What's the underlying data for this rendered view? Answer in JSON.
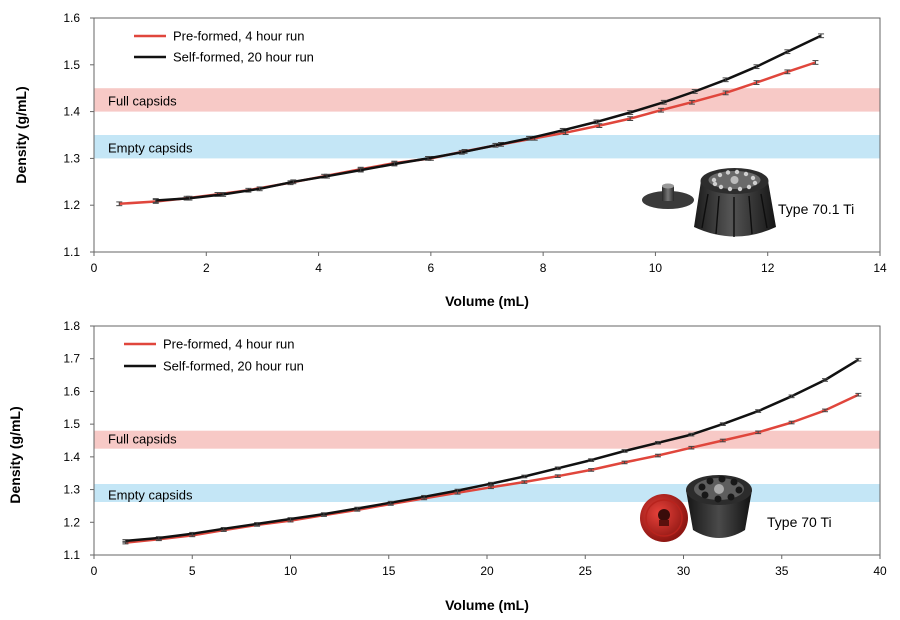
{
  "chart_data": [
    {
      "type": "line",
      "xlabel": "Volume (mL)",
      "ylabel": "Density (g/mL)",
      "xlim": [
        0,
        14
      ],
      "ylim": [
        1.1,
        1.6
      ],
      "xticks": [
        0,
        2,
        4,
        6,
        8,
        10,
        12,
        14
      ],
      "yticks": [
        1.1,
        1.2,
        1.3,
        1.4,
        1.5,
        1.6
      ],
      "x_tick_labels": [
        "0",
        "2",
        "4",
        "6",
        "8",
        "10",
        "12",
        "14"
      ],
      "y_tick_labels": [
        "1.1",
        "1.2",
        "1.3",
        "1.4",
        "1.5",
        "1.6"
      ],
      "grid": false,
      "legend": "top-left",
      "rotor_label": "Type 70.1 Ti",
      "bands": [
        {
          "label": "Full capsids",
          "y0": 1.4,
          "y1": 1.45,
          "color": "#f7c9c6"
        },
        {
          "label": "Empty capsids",
          "y0": 1.3,
          "y1": 1.35,
          "color": "#c4e6f6"
        }
      ],
      "series": [
        {
          "name": "Pre-formed, 4 hour run",
          "color": "#e0463c",
          "x": [
            0.45,
            1.1,
            1.65,
            2.2,
            2.75,
            3.5,
            4.1,
            4.75,
            5.35,
            6.0,
            6.6,
            7.25,
            7.85,
            8.4,
            9.0,
            9.55,
            10.1,
            10.65,
            11.25,
            11.8,
            12.35,
            12.85
          ],
          "y": [
            1.203,
            1.208,
            1.215,
            1.223,
            1.232,
            1.248,
            1.262,
            1.277,
            1.29,
            1.3,
            1.315,
            1.33,
            1.343,
            1.355,
            1.37,
            1.385,
            1.403,
            1.42,
            1.44,
            1.462,
            1.485,
            1.505
          ]
        },
        {
          "name": "Self-formed, 20 hour run",
          "color": "#111111",
          "x": [
            1.1,
            1.7,
            2.3,
            2.95,
            3.55,
            4.15,
            4.75,
            5.35,
            5.95,
            6.55,
            7.15,
            7.75,
            8.35,
            8.95,
            9.55,
            10.15,
            10.7,
            11.25,
            11.8,
            12.35,
            12.95
          ],
          "y": [
            1.21,
            1.215,
            1.223,
            1.235,
            1.25,
            1.262,
            1.275,
            1.288,
            1.3,
            1.313,
            1.328,
            1.343,
            1.36,
            1.378,
            1.398,
            1.42,
            1.443,
            1.468,
            1.496,
            1.528,
            1.562
          ]
        }
      ]
    },
    {
      "type": "line",
      "xlabel": "Volume (mL)",
      "ylabel": "Density (g/mL)",
      "xlim": [
        0,
        40
      ],
      "ylim": [
        1.1,
        1.8
      ],
      "xticks": [
        0,
        5,
        10,
        15,
        20,
        25,
        30,
        35,
        40
      ],
      "yticks": [
        1.1,
        1.2,
        1.3,
        1.4,
        1.5,
        1.6,
        1.7,
        1.8
      ],
      "x_tick_labels": [
        "0",
        "5",
        "10",
        "15",
        "20",
        "25",
        "30",
        "35",
        "40"
      ],
      "y_tick_labels": [
        "1.1",
        "1.2",
        "1.3",
        "1.4",
        "1.5",
        "1.6",
        "1.7",
        "1.8"
      ],
      "grid": false,
      "legend": "top-left",
      "rotor_label": "Type 70 Ti",
      "bands": [
        {
          "label": "Full capsids",
          "y0": 1.425,
          "y1": 1.48,
          "color": "#f7c9c6"
        },
        {
          "label": "Empty capsids",
          "y0": 1.262,
          "y1": 1.317,
          "color": "#c4e6f6"
        }
      ],
      "series": [
        {
          "name": "Pre-formed, 4 hour run",
          "color": "#e0463c",
          "x": [
            1.6,
            3.3,
            5.0,
            6.6,
            8.3,
            10.0,
            11.7,
            13.4,
            15.1,
            16.8,
            18.5,
            20.2,
            21.9,
            23.6,
            25.3,
            27.0,
            28.7,
            30.4,
            32.0,
            33.8,
            35.5,
            37.2,
            38.9
          ],
          "y": [
            1.138,
            1.148,
            1.16,
            1.176,
            1.192,
            1.205,
            1.222,
            1.238,
            1.256,
            1.273,
            1.29,
            1.307,
            1.323,
            1.341,
            1.36,
            1.383,
            1.404,
            1.428,
            1.45,
            1.475,
            1.505,
            1.542,
            1.59
          ]
        },
        {
          "name": "Self-formed, 20 hour run",
          "color": "#111111",
          "x": [
            1.6,
            3.3,
            5.0,
            6.6,
            8.3,
            10.0,
            11.7,
            13.4,
            15.1,
            16.8,
            18.5,
            20.2,
            21.9,
            23.6,
            25.3,
            27.0,
            28.7,
            30.4,
            32.0,
            33.8,
            35.5,
            37.2,
            38.9
          ],
          "y": [
            1.143,
            1.152,
            1.165,
            1.18,
            1.195,
            1.21,
            1.225,
            1.242,
            1.26,
            1.278,
            1.297,
            1.318,
            1.34,
            1.365,
            1.39,
            1.418,
            1.443,
            1.468,
            1.5,
            1.54,
            1.585,
            1.635,
            1.697
          ]
        }
      ]
    }
  ]
}
